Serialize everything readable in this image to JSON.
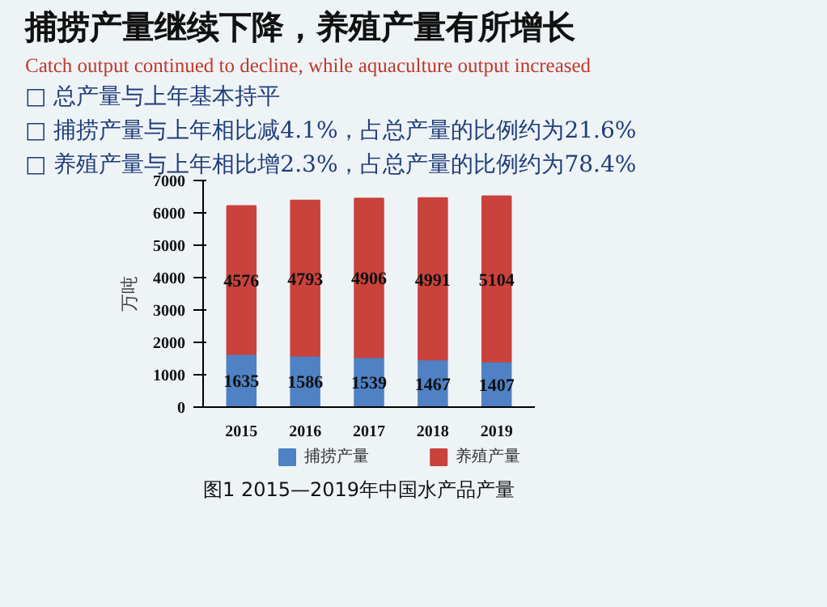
{
  "chart_data": {
    "type": "bar",
    "stacked": true,
    "title": "捕捞产量继续下降，养殖产量有所增长",
    "subtitle": "Catch output continued to decline, while aquaculture output increased",
    "annotations": [
      "□ 总产量与上年基本持平",
      "□ 捕捞产量与上年相比减4.1%，占总产量的比例约为21.6%",
      "□ 养殖产量与上年相比增2.3%，占总产量的比例约为78.4%",
      "图1  2015—2019年中国水产品产量"
    ],
    "ylabel": "万吨",
    "categories": [
      "2015",
      "2016",
      "2017",
      "2018",
      "2019"
    ],
    "series": [
      {
        "name": "捕捞产量",
        "color": "#4f81c4",
        "values": [
          1635,
          1586,
          1539,
          1467,
          1407
        ]
      },
      {
        "name": "养殖产量",
        "color": "#c9423c",
        "values": [
          4576,
          4793,
          4906,
          4991,
          5104
        ]
      }
    ],
    "ylim": [
      0,
      7000
    ],
    "yticks": [
      0,
      1000,
      2000,
      3000,
      4000,
      5000,
      6000,
      7000
    ],
    "data_labels": true,
    "legend": "bottom",
    "grid": false
  }
}
